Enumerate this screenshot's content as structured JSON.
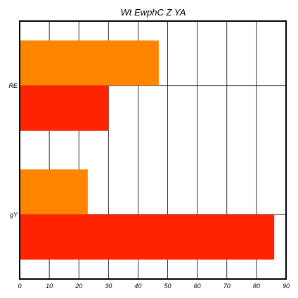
{
  "chart_data": {
    "type": "bar",
    "orientation": "horizontal",
    "title": "Wt EwphC Z YA",
    "xlabel": "",
    "ylabel": "",
    "categories": [
      "RE",
      "gY"
    ],
    "series": [
      {
        "values": [
          47,
          23
        ],
        "color": "#ff8400"
      },
      {
        "values": [
          30,
          86
        ],
        "color": "#ff2400"
      }
    ],
    "xlim": [
      0,
      90
    ],
    "xticks": [
      "0",
      "10",
      "20",
      "30",
      "40",
      "50",
      "60",
      "70",
      "80",
      "90"
    ],
    "grid": true,
    "legend": "none"
  }
}
